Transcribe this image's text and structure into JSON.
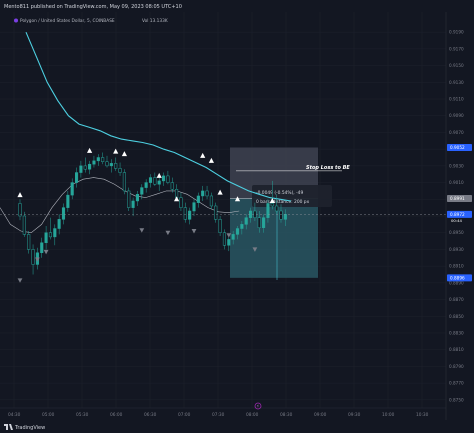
{
  "header": {
    "published": "Mento811 published on TradingView.com, May 09, 2023 08:05 UTC+10",
    "symbol": "Polygon / United States Dollar, 5, COINBASE",
    "volume": "Vol 13.133K"
  },
  "footer": {
    "brand": "TradingView"
  },
  "colors": {
    "background": "#131722",
    "up": "#26a69a",
    "ma_fast": "#4dd0e1",
    "ma_slow": "#b2b5be",
    "position_top": "#3e4250",
    "position_bottom": "#2a5a66",
    "label_blue": "#2962ff",
    "marker": "#ffffff"
  },
  "chart_data": {
    "type": "candlestick",
    "title": "Polygon / United States Dollar, 5, COINBASE",
    "y_ticks": [
      "0.9190",
      "0.9170",
      "0.9150",
      "0.9130",
      "0.9110",
      "0.9090",
      "0.9070",
      "0.9050",
      "0.9030",
      "0.9010",
      "0.8990",
      "0.8970",
      "0.8950",
      "0.8930",
      "0.8910",
      "0.8890",
      "0.8870",
      "0.8850",
      "0.8830",
      "0.8810",
      "0.8790",
      "0.8770",
      "0.8750"
    ],
    "y_labels": [
      {
        "value": 0.9052,
        "text": "0.9052"
      },
      {
        "value": 0.8991,
        "text": "0.8991"
      },
      {
        "value": 0.8972,
        "text": "0.8972"
      },
      {
        "value": 0.8896,
        "text": "0.8896"
      }
    ],
    "x_ticks": [
      "04:30",
      "05:00",
      "05:30",
      "06:00",
      "06:30",
      "07:00",
      "07:30",
      "08:00",
      "08:30",
      "09:00",
      "09:30",
      "10:00",
      "10:30"
    ],
    "ylim": [
      0.8745,
      0.9195
    ],
    "candles": [
      [
        0.8985,
        0.899,
        0.8965,
        0.897
      ],
      [
        0.897,
        0.8975,
        0.8945,
        0.8948
      ],
      [
        0.8948,
        0.8952,
        0.8925,
        0.893
      ],
      [
        0.893,
        0.8936,
        0.89,
        0.8912
      ],
      [
        0.8912,
        0.8932,
        0.8906,
        0.8926
      ],
      [
        0.8926,
        0.8944,
        0.892,
        0.8938
      ],
      [
        0.8938,
        0.8958,
        0.893,
        0.895
      ],
      [
        0.895,
        0.8968,
        0.8942,
        0.8945
      ],
      [
        0.8945,
        0.896,
        0.8935,
        0.8955
      ],
      [
        0.8955,
        0.8972,
        0.8948,
        0.8966
      ],
      [
        0.8966,
        0.8985,
        0.896,
        0.898
      ],
      [
        0.898,
        0.9,
        0.8975,
        0.8995
      ],
      [
        0.8995,
        0.9015,
        0.899,
        0.901
      ],
      [
        0.901,
        0.9028,
        0.9004,
        0.9022
      ],
      [
        0.9022,
        0.9036,
        0.9016,
        0.903
      ],
      [
        0.903,
        0.904,
        0.9022,
        0.9026
      ],
      [
        0.9026,
        0.9036,
        0.902,
        0.9032
      ],
      [
        0.9032,
        0.9042,
        0.9028,
        0.9036
      ],
      [
        0.9036,
        0.9044,
        0.903,
        0.904
      ],
      [
        0.904,
        0.9046,
        0.9032,
        0.9035
      ],
      [
        0.9035,
        0.9042,
        0.9028,
        0.903
      ],
      [
        0.903,
        0.9038,
        0.9022,
        0.9033
      ],
      [
        0.9033,
        0.904,
        0.9024,
        0.9027
      ],
      [
        0.9027,
        0.9034,
        0.9018,
        0.9022
      ],
      [
        0.9022,
        0.9026,
        0.8996,
        0.9
      ],
      [
        0.9,
        0.9004,
        0.8976,
        0.898
      ],
      [
        0.898,
        0.8992,
        0.897,
        0.8988
      ],
      [
        0.8988,
        0.9,
        0.8982,
        0.8996
      ],
      [
        0.8996,
        0.9008,
        0.899,
        0.9004
      ],
      [
        0.9004,
        0.9014,
        0.8998,
        0.901
      ],
      [
        0.901,
        0.902,
        0.9004,
        0.9016
      ],
      [
        0.9016,
        0.9022,
        0.9006,
        0.9008
      ],
      [
        0.9008,
        0.9016,
        0.9,
        0.9012
      ],
      [
        0.9012,
        0.9022,
        0.9006,
        0.9018
      ],
      [
        0.9018,
        0.9024,
        0.9008,
        0.901
      ],
      [
        0.901,
        0.9016,
        0.8998,
        0.9002
      ],
      [
        0.9002,
        0.9008,
        0.8988,
        0.8992
      ],
      [
        0.8992,
        0.8998,
        0.8976,
        0.898
      ],
      [
        0.898,
        0.8986,
        0.8962,
        0.8966
      ],
      [
        0.8966,
        0.898,
        0.896,
        0.8976
      ],
      [
        0.8976,
        0.899,
        0.897,
        0.8986
      ],
      [
        0.8986,
        0.8998,
        0.898,
        0.8994
      ],
      [
        0.8994,
        0.9006,
        0.8988,
        0.9
      ],
      [
        0.9,
        0.9006,
        0.899,
        0.8994
      ],
      [
        0.8994,
        0.8998,
        0.8978,
        0.8982
      ],
      [
        0.8982,
        0.8986,
        0.8962,
        0.8966
      ],
      [
        0.8966,
        0.897,
        0.8946,
        0.895
      ],
      [
        0.895,
        0.8954,
        0.893,
        0.8935
      ],
      [
        0.8935,
        0.8946,
        0.8928,
        0.8942
      ],
      [
        0.8942,
        0.8952,
        0.8936,
        0.8948
      ],
      [
        0.8948,
        0.8958,
        0.8942,
        0.8955
      ],
      [
        0.8955,
        0.8964,
        0.8948,
        0.896
      ],
      [
        0.896,
        0.8972,
        0.8954,
        0.8968
      ],
      [
        0.8968,
        0.898,
        0.8962,
        0.8976
      ],
      [
        0.8976,
        0.8986,
        0.8964,
        0.8968
      ],
      [
        0.8968,
        0.8976,
        0.895,
        0.8956
      ],
      [
        0.8956,
        0.8972,
        0.895,
        0.8968
      ],
      [
        0.8968,
        0.899,
        0.8962,
        0.8985
      ],
      [
        0.8985,
        0.9012,
        0.8978,
        0.8982
      ],
      [
        0.8982,
        0.8996,
        0.8972,
        0.8976
      ],
      [
        0.8976,
        0.8984,
        0.8962,
        0.8966
      ],
      [
        0.8966,
        0.8978,
        0.8958,
        0.8972
      ]
    ],
    "series": [
      {
        "values": [
          0.919,
          0.916,
          0.913,
          0.9108,
          0.909,
          0.908,
          0.9076,
          0.9072,
          0.9066,
          0.9062,
          0.906,
          0.9058,
          0.9055,
          0.905,
          0.9046,
          0.904,
          0.9034,
          0.9028,
          0.902,
          0.9012,
          0.9006,
          0.9,
          0.8996,
          0.8992,
          0.899,
          0.8988
        ]
      },
      {
        "values": [
          0.898,
          0.896,
          0.8952,
          0.895,
          0.896,
          0.898,
          0.8996,
          0.9008,
          0.9014,
          0.9016,
          0.9014,
          0.9008,
          0.9,
          0.8994,
          0.8992,
          0.8996,
          0.9,
          0.9,
          0.8996,
          0.8988,
          0.898,
          0.8975,
          0.8974,
          0.8976
        ]
      }
    ],
    "markers_up": [
      {
        "x": 0,
        "y": 0.8995
      },
      {
        "x": 8,
        "y": 0.9048
      },
      {
        "x": 11,
        "y": 0.9047
      },
      {
        "x": 12,
        "y": 0.9044
      },
      {
        "x": 16,
        "y": 0.9018
      },
      {
        "x": 18,
        "y": 0.899
      },
      {
        "x": 21,
        "y": 0.9042
      },
      {
        "x": 22,
        "y": 0.9036
      },
      {
        "x": 23,
        "y": 0.8998
      },
      {
        "x": 25,
        "y": 0.899
      },
      {
        "x": 29,
        "y": 0.8988
      }
    ],
    "markers_down": [
      {
        "x": 0,
        "y": 0.8893
      },
      {
        "x": 2,
        "y": 0.8918
      },
      {
        "x": 3,
        "y": 0.8927
      },
      {
        "x": 14,
        "y": 0.8953
      },
      {
        "x": 17,
        "y": 0.895
      },
      {
        "x": 20,
        "y": 0.8952
      },
      {
        "x": 24,
        "y": 0.8947
      },
      {
        "x": 27,
        "y": 0.893
      }
    ],
    "position": {
      "entry": 0.8991,
      "target": 0.9052,
      "stop": 0.8896,
      "stop_line": 0.9024,
      "annotation": "Stop Loss to BE",
      "tooltip_line1": "-0.0049 (-0.54%), -49",
      "tooltip_line2": "0 bars, distance: 200 px"
    },
    "crosshair_price": 0.8972,
    "crosshair_label": "0.8972",
    "crosshair_sub": "00:44",
    "grid": true
  }
}
